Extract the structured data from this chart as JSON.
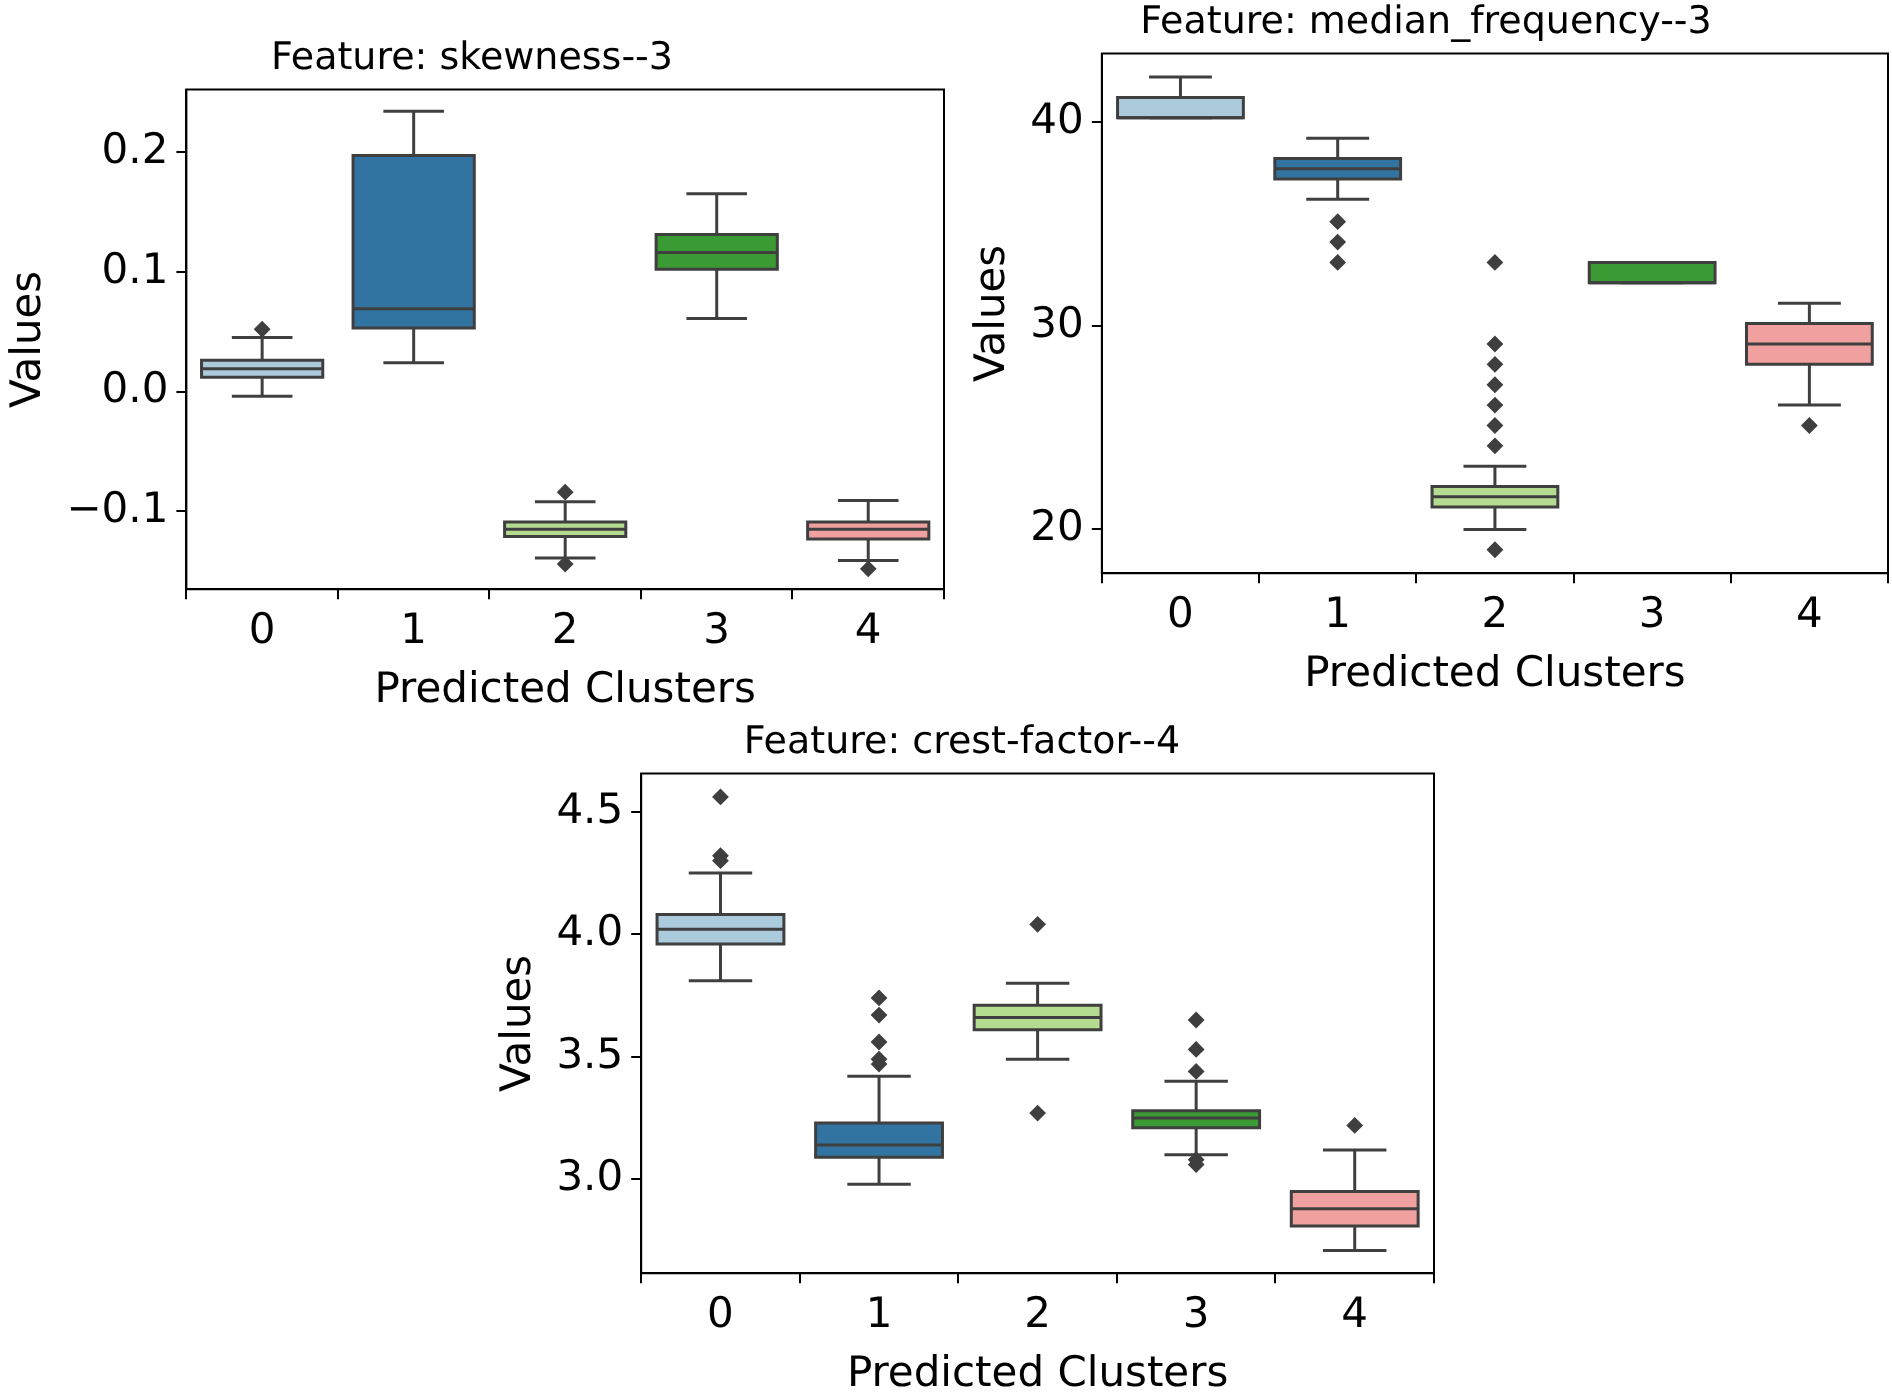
{
  "chart_data": [
    {
      "type": "box",
      "title": "Feature: skewness--3",
      "xlabel": "Predicted Clusters",
      "ylabel": "Values",
      "categories": [
        "0",
        "1",
        "2",
        "3",
        "4"
      ],
      "colors": [
        "#abcbdd",
        "#3274a1",
        "#b4dc91",
        "#3a9a33",
        "#f0a09f"
      ],
      "ylim": [
        -0.165,
        0.252
      ],
      "yticks": [
        {
          "value": -0.1,
          "label": "−0.1"
        },
        {
          "value": 0,
          "label": "0.0"
        },
        {
          "value": 0.1,
          "label": "0.1"
        },
        {
          "value": 0.2,
          "label": "0.2"
        }
      ],
      "marker": "diamond",
      "grid": false,
      "boxes": [
        {
          "low": -0.004,
          "q1": 0.012,
          "median": 0.019,
          "q3": 0.026,
          "high": 0.045,
          "outliers": [
            0.052
          ]
        },
        {
          "low": 0.024,
          "q1": 0.053,
          "median": 0.069,
          "q3": 0.197,
          "high": 0.234
        },
        {
          "low": -0.139,
          "q1": -0.121,
          "median": -0.115,
          "q3": -0.109,
          "high": -0.092,
          "outliers": [
            -0.084,
            -0.144
          ]
        },
        {
          "low": 0.061,
          "q1": 0.102,
          "median": 0.116,
          "q3": 0.131,
          "high": 0.165
        },
        {
          "low": -0.141,
          "q1": -0.123,
          "median": -0.115,
          "q3": -0.109,
          "high": -0.091,
          "outliers": [
            -0.148
          ]
        }
      ]
    },
    {
      "type": "box",
      "title": "Feature: median_frequency--3",
      "xlabel": "Predicted Clusters",
      "ylabel": "Values",
      "categories": [
        "0",
        "1",
        "2",
        "3",
        "4"
      ],
      "colors": [
        "#abcbdd",
        "#3274a1",
        "#b4dc91",
        "#3a9a33",
        "#f0a09f"
      ],
      "ylim": [
        17.85,
        43.35
      ],
      "yticks": [
        20,
        30,
        40
      ],
      "marker": "diamond",
      "grid": false,
      "boxes": [
        {
          "low": 40.2,
          "q1": 40.2,
          "median": 40.2,
          "q3": 41.2,
          "high": 42.2
        },
        {
          "low": 36.2,
          "q1": 37.2,
          "median": 37.7,
          "q3": 38.2,
          "high": 39.2,
          "outliers": [
            35.1,
            34.1,
            33.1
          ]
        },
        {
          "low": 20,
          "q1": 21.1,
          "median": 21.6,
          "q3": 22.1,
          "high": 23.1,
          "outliers": [
            19,
            24.1,
            25.1,
            26.1,
            27.1,
            28.1,
            29.1,
            33.1
          ]
        },
        {
          "low": 32.1,
          "q1": 32.1,
          "median": 32.1,
          "q3": 33.1,
          "high": 33.1
        },
        {
          "low": 26.1,
          "q1": 28.1,
          "median": 29.1,
          "q3": 30.1,
          "high": 31.1,
          "outliers": [
            25.1
          ]
        }
      ]
    },
    {
      "type": "box",
      "title": "Feature: crest-factor--4",
      "xlabel": "Predicted Clusters",
      "ylabel": "Values",
      "categories": [
        "0",
        "1",
        "2",
        "3",
        "4"
      ],
      "colors": [
        "#abcbdd",
        "#3274a1",
        "#b4dc91",
        "#3a9a33",
        "#f0a09f"
      ],
      "ylim": [
        2.617,
        4.655
      ],
      "yticks": [
        {
          "value": 3,
          "label": "3.0"
        },
        {
          "value": 3.5,
          "label": "3.5"
        },
        {
          "value": 4,
          "label": "4.0"
        },
        {
          "value": 4.5,
          "label": "4.5"
        }
      ],
      "marker": "diamond",
      "grid": false,
      "boxes": [
        {
          "low": 3.81,
          "q1": 3.96,
          "median": 4.02,
          "q3": 4.08,
          "high": 4.25,
          "outliers": [
            4.56,
            4.32,
            4.3
          ]
        },
        {
          "low": 2.98,
          "q1": 3.09,
          "median": 3.14,
          "q3": 3.23,
          "high": 3.42,
          "outliers": [
            3.74,
            3.67,
            3.56,
            3.49,
            3.47
          ]
        },
        {
          "low": 3.49,
          "q1": 3.61,
          "median": 3.66,
          "q3": 3.71,
          "high": 3.8,
          "outliers": [
            4.04,
            3.27
          ]
        },
        {
          "low": 3.1,
          "q1": 3.21,
          "median": 3.25,
          "q3": 3.28,
          "high": 3.4,
          "outliers": [
            3.65,
            3.53,
            3.44,
            3.08,
            3.06
          ]
        },
        {
          "low": 2.71,
          "q1": 2.81,
          "median": 2.88,
          "q3": 2.95,
          "high": 3.12,
          "outliers": [
            3.22
          ]
        }
      ]
    }
  ]
}
